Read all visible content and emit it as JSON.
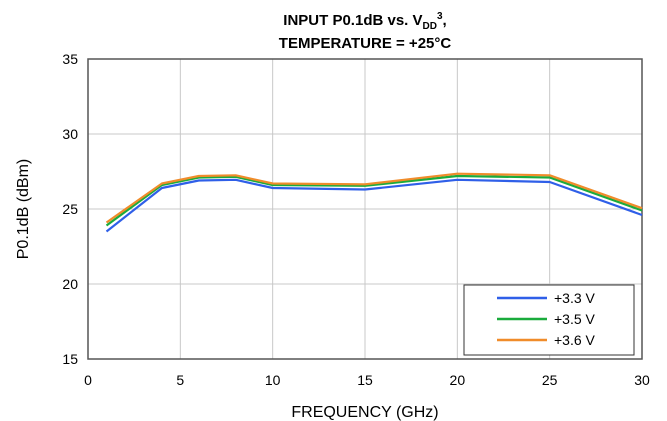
{
  "chart_data": {
    "type": "line",
    "title_parts": {
      "line1_prefix": "INPUT P0.1dB vs. V",
      "line1_sub": "DD",
      "line1_sup": "3",
      "line1_suffix": ",",
      "line2": "TEMPERATURE = +25°C"
    },
    "xlabel": "FREQUENCY (GHz)",
    "ylabel": "P0.1dB (dBm)",
    "xlim": [
      0,
      30
    ],
    "ylim": [
      15,
      35
    ],
    "xticks": [
      0,
      5,
      10,
      15,
      20,
      25,
      30
    ],
    "yticks": [
      15,
      20,
      25,
      30,
      35
    ],
    "grid": true,
    "legend_position": "bottom-right",
    "x": [
      1,
      4,
      6,
      8,
      10,
      15,
      20,
      25,
      30
    ],
    "series": [
      {
        "name": "+3.3 V",
        "color": "#2f5fe8",
        "values": [
          23.5,
          26.4,
          26.9,
          26.95,
          26.4,
          26.3,
          26.95,
          26.8,
          24.6
        ]
      },
      {
        "name": "+3.5 V",
        "color": "#1aab3c",
        "values": [
          23.9,
          26.6,
          27.1,
          27.15,
          26.6,
          26.55,
          27.2,
          27.1,
          24.9
        ]
      },
      {
        "name": "+3.6 V",
        "color": "#f08c2a",
        "values": [
          24.1,
          26.7,
          27.2,
          27.25,
          26.7,
          26.65,
          27.35,
          27.25,
          25.05
        ]
      }
    ]
  }
}
